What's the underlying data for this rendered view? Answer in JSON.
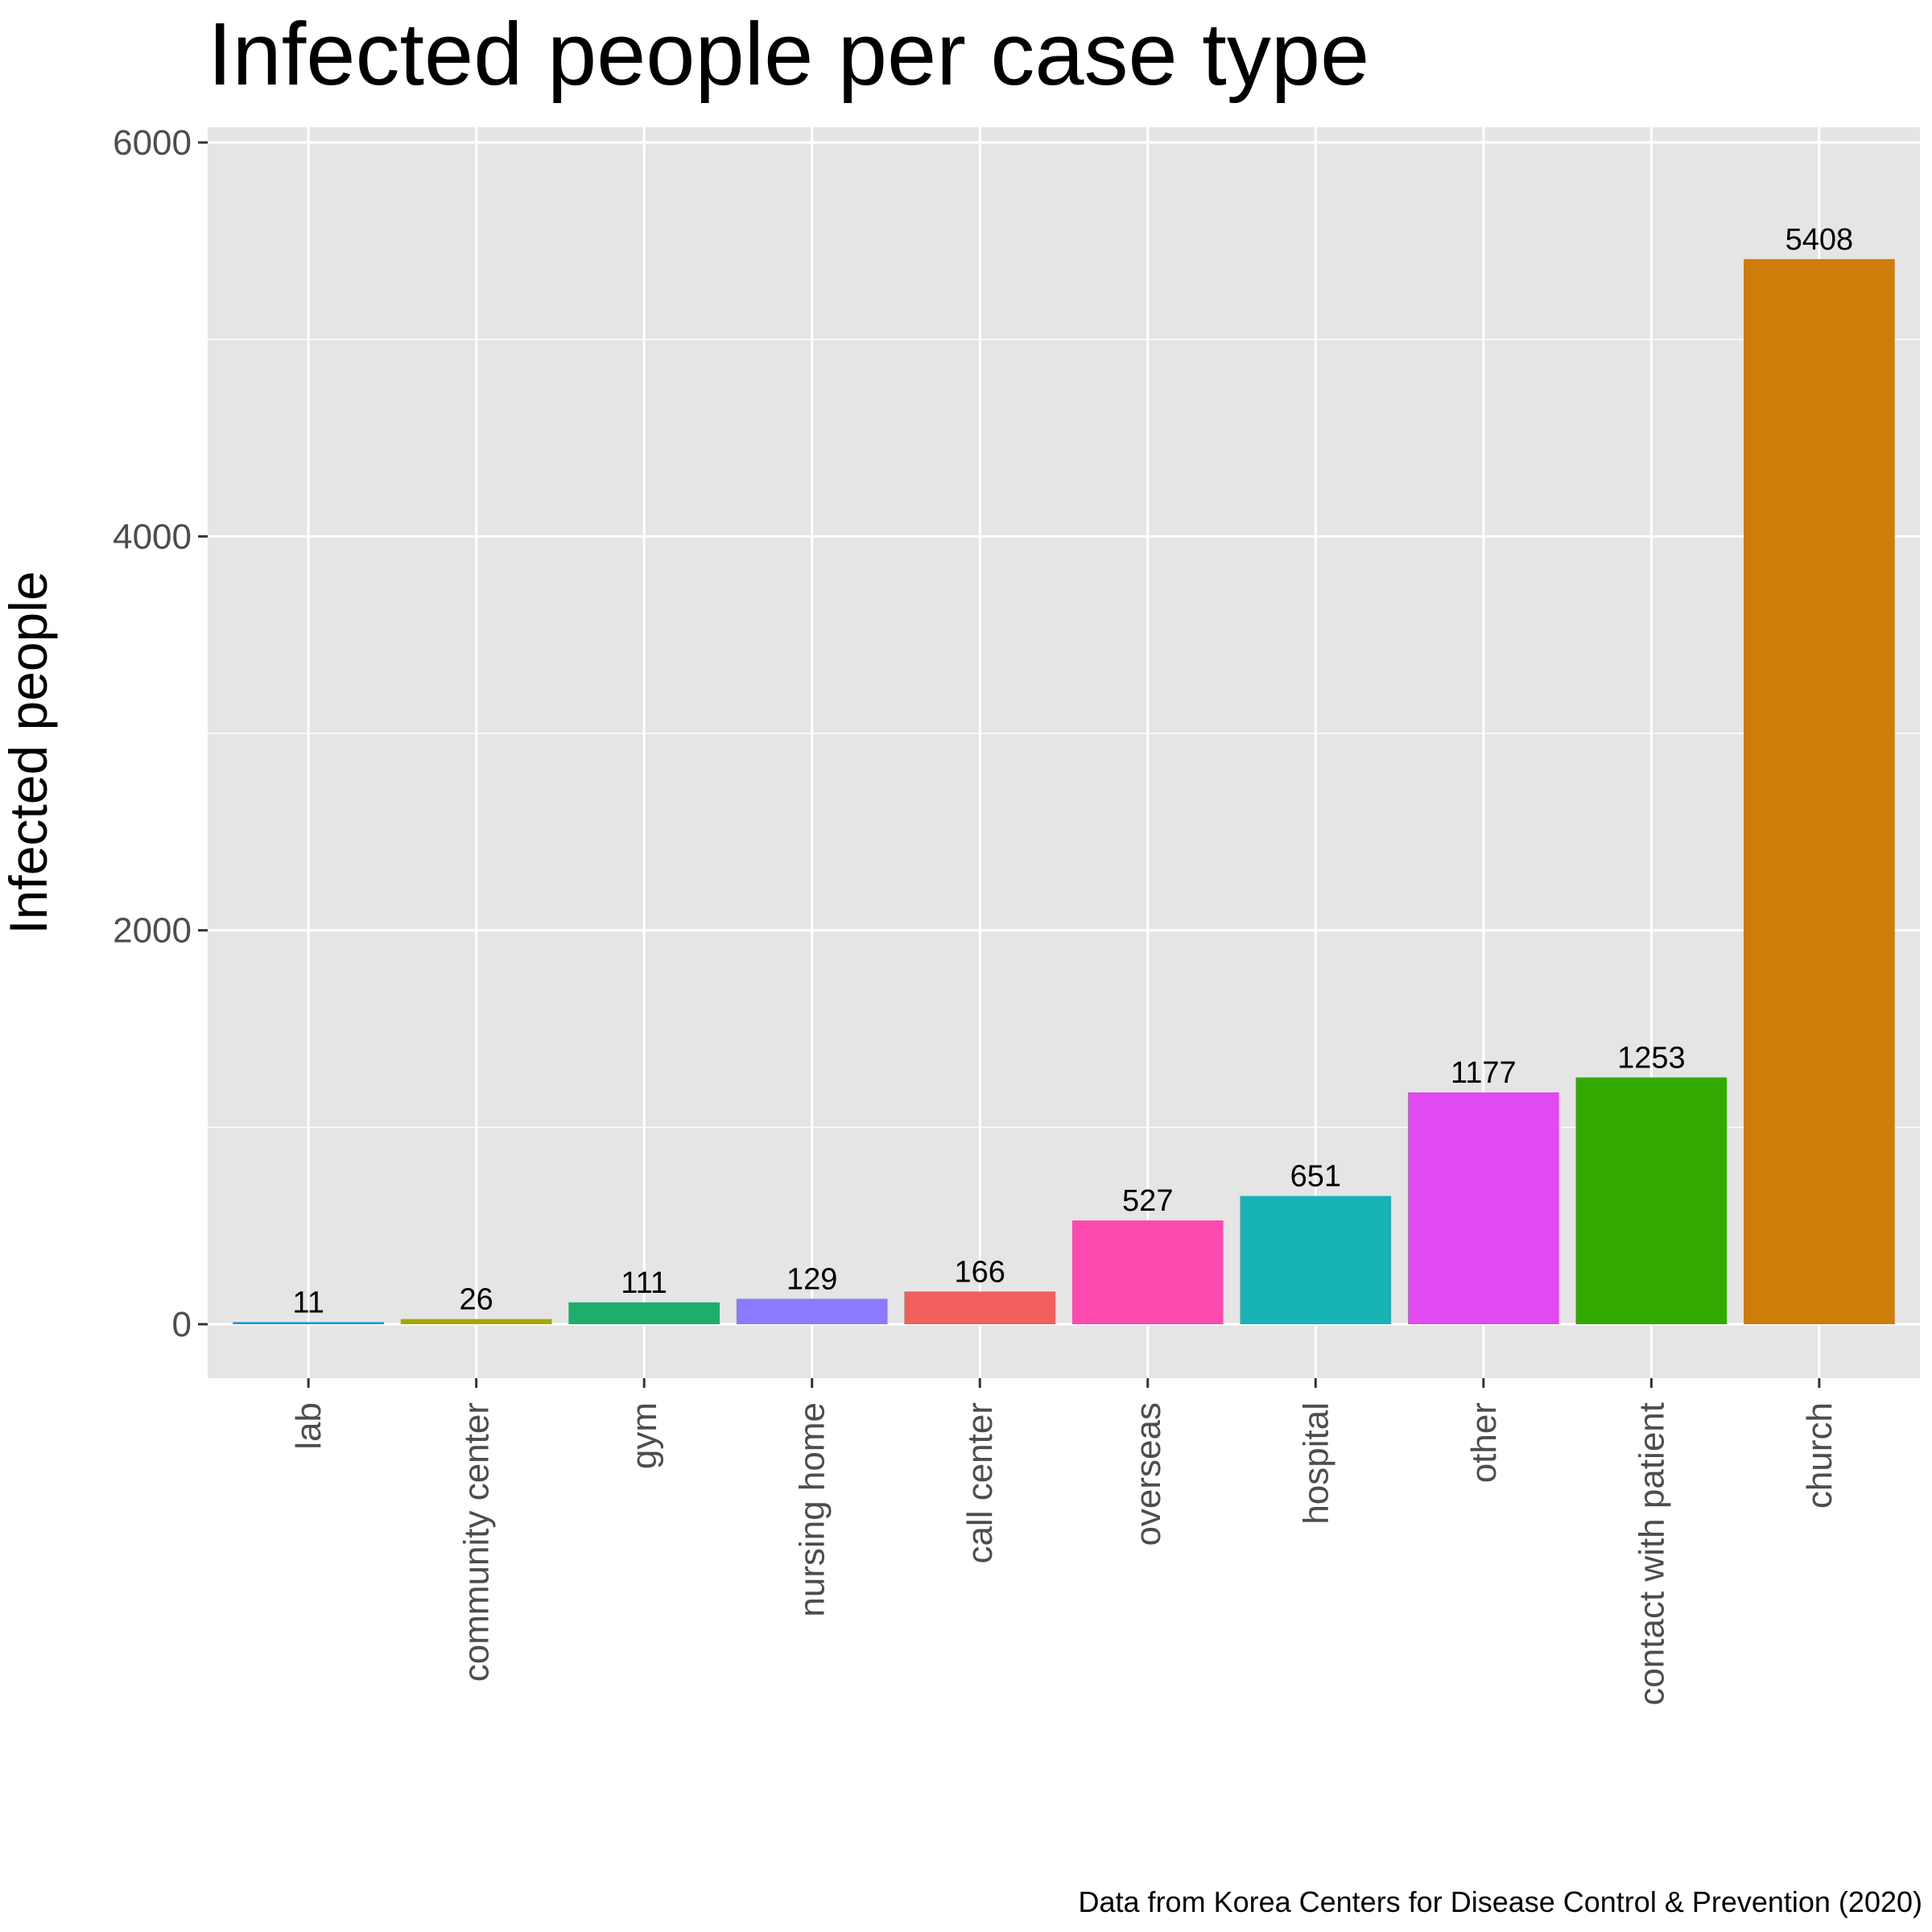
{
  "chart_data": {
    "type": "bar",
    "title": "Infected people per case type",
    "ylabel": "Infected people",
    "xlabel": "",
    "caption": "Data from Korea Centers for Disease Control & Prevention (2020)",
    "categories": [
      "lab",
      "community center",
      "gym",
      "nursing home",
      "call center",
      "overseas",
      "hospital",
      "other",
      "contact with patient",
      "church"
    ],
    "values": [
      11,
      26,
      111,
      129,
      166,
      527,
      651,
      1177,
      1253,
      5408
    ],
    "data_labels": [
      "11",
      "26",
      "111",
      "129",
      "166",
      "527",
      "651",
      "1177",
      "1253",
      "5408"
    ],
    "colors": [
      "#1F97E6",
      "#A3A500",
      "#1CAE6B",
      "#8B79FF",
      "#F15E5E",
      "#FC4AAE",
      "#17B3B6",
      "#E14AF0",
      "#33AA02",
      "#CE7D0A"
    ],
    "yticks": [
      0,
      2000,
      4000,
      6000
    ],
    "ytick_labels": [
      "0",
      "2000",
      "4000",
      "6000"
    ],
    "ylim": [
      -270,
      6080
    ],
    "grid": true,
    "legend": "none",
    "panel_background": "#E5E5E5",
    "grid_color": "#FFFFFF"
  }
}
